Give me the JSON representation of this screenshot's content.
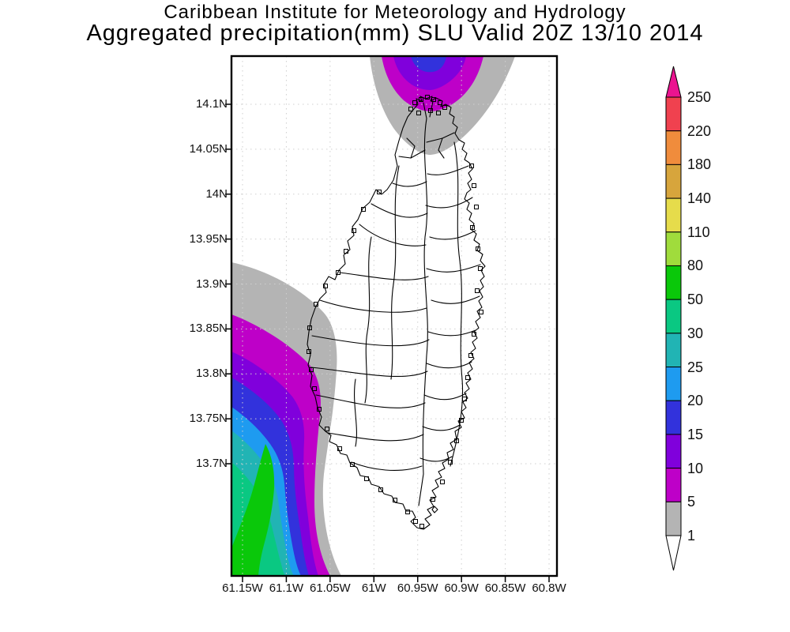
{
  "title": {
    "line1": "Caribbean Institute for Meteorology and Hydrology",
    "line2": "Aggregated precipitation(mm) SLU Valid 20Z 13/10 2014"
  },
  "axes": {
    "y_ticks": [
      "14.1N",
      "14.05N",
      "14N",
      "13.95N",
      "13.9N",
      "13.85N",
      "13.8N",
      "13.75N",
      "13.7N"
    ],
    "x_ticks": [
      "61.15W",
      "61.1W",
      "61.05W",
      "61W",
      "60.95W",
      "60.9W",
      "60.85W",
      "60.8W"
    ]
  },
  "colorbar": {
    "labels": [
      "250",
      "220",
      "180",
      "140",
      "110",
      "80",
      "50",
      "30",
      "25",
      "20",
      "15",
      "10",
      "5",
      "1"
    ],
    "segment_colors": [
      "#F0414F",
      "#F08C3C",
      "#D7A53C",
      "#E6DC4B",
      "#A0DC3C",
      "#0AC80A",
      "#0AC882",
      "#21B4B4",
      "#1E9BF0",
      "#3232DC",
      "#8000DC",
      "#BE00C8",
      "#B4B4B4"
    ],
    "arrow_top_color": "#EB1490",
    "arrow_bottom_color": "#FFFFFF"
  },
  "chart_data": {
    "type": "filled-contour-map",
    "units": "mm",
    "title": "Aggregated precipitation(mm) SLU Valid 20Z 13/10 2014",
    "levels": [
      1,
      5,
      10,
      15,
      20,
      25,
      30,
      50,
      80,
      110,
      140,
      180,
      220,
      250
    ],
    "palette_ascending": [
      "#B4B4B4",
      "#BE00C8",
      "#8000DC",
      "#3232DC",
      "#1E9BF0",
      "#21B4B4",
      "#0AC882",
      "#0AC80A",
      "#A0DC3C",
      "#E6DC4B",
      "#D7A53C",
      "#F08C3C",
      "#F0414F",
      "#EB1490"
    ],
    "lat_ticks": [
      "14.1N",
      "14.05N",
      "14N",
      "13.95N",
      "13.9N",
      "13.85N",
      "13.8N",
      "13.75N",
      "13.7N"
    ],
    "lon_ticks": [
      "61.15W",
      "61.1W",
      "61.05W",
      "61W",
      "60.95W",
      "60.9W",
      "60.85W",
      "60.8W"
    ],
    "grid": "dotted",
    "legend_position": "right",
    "regions": [
      {
        "name": "southwest-offshore-precipitation-cell",
        "location": "west of island, 13.7N-13.95N near 61.1W-61.15W",
        "max_band_mm": "50-80"
      },
      {
        "name": "north-offshore-precipitation-cell",
        "location": "over/above northern tip near 60.95W",
        "max_band_mm": "15-20"
      }
    ]
  }
}
